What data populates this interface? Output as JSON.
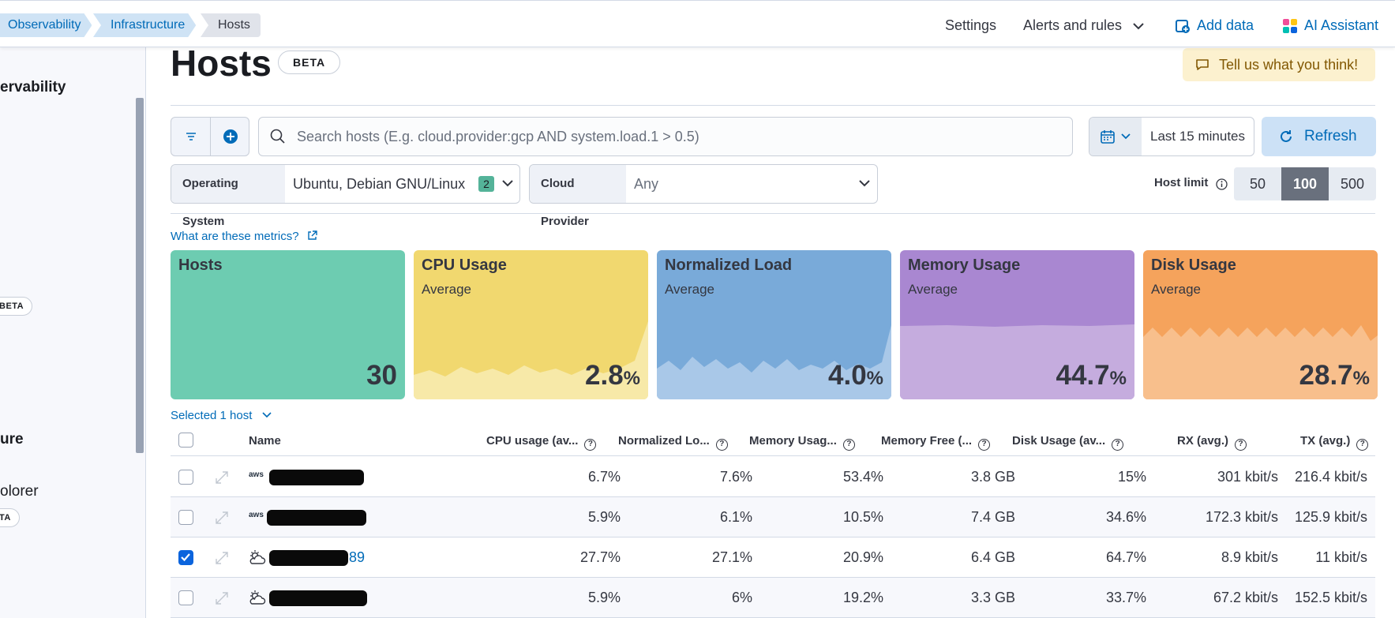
{
  "breadcrumbs": [
    "Observability",
    "Infrastructure",
    "Hosts"
  ],
  "header": {
    "settings": "Settings",
    "alerts": "Alerts and rules",
    "add_data": "Add data",
    "ai_assistant": "AI Assistant"
  },
  "sidebar": {
    "title_fragment": "ervability",
    "item2_fragment": "ure",
    "item3_fragment": "olorer",
    "beta1": "BETA",
    "beta2": "TA"
  },
  "page": {
    "title": "Hosts",
    "badge": "BETA",
    "feedback": "Tell us what you think!"
  },
  "search": {
    "placeholder": "Search hosts (E.g. cloud.provider:gcp AND system.load.1 > 0.5)"
  },
  "time": {
    "label": "Last 15 minutes",
    "refresh": "Refresh"
  },
  "filters": {
    "os_label": "Operating System",
    "os_value": "Ubuntu, Debian GNU/Linux",
    "os_count": "2",
    "cloud_label": "Cloud Provider",
    "cloud_value": "Any"
  },
  "host_limit": {
    "label": "Host limit",
    "options": [
      "50",
      "100",
      "500"
    ],
    "selected": "100"
  },
  "metrics_link": "What are these metrics?",
  "cards": [
    {
      "title": "Hosts",
      "subtitle": "",
      "value": "30",
      "unit": "",
      "color": "#6dccb1"
    },
    {
      "title": "CPU Usage",
      "subtitle": "Average",
      "value": "2.8",
      "unit": "%",
      "color": "#f1d86f"
    },
    {
      "title": "Normalized Load",
      "subtitle": "Average",
      "value": "4.0",
      "unit": "%",
      "color": "#79aad9"
    },
    {
      "title": "Memory Usage",
      "subtitle": "Average",
      "value": "44.7",
      "unit": "%",
      "color": "#a987d1"
    },
    {
      "title": "Disk Usage",
      "subtitle": "Average",
      "value": "28.7",
      "unit": "%",
      "color": "#f5a35c"
    }
  ],
  "selected": "Selected 1 host",
  "table": {
    "columns": [
      "Name",
      "CPU usage (av...",
      "Normalized Lo...",
      "Memory Usag...",
      "Memory Free (...",
      "Disk Usage (av...",
      "RX (avg.)",
      "TX (avg.)"
    ],
    "rows": [
      {
        "provider": "aws",
        "name_suffix": "",
        "checked": false,
        "cpu": "6.7%",
        "load": "7.6%",
        "mem": "53.4%",
        "free": "3.8 GB",
        "disk": "15%",
        "rx": "301 kbit/s",
        "tx": "216.4 kbit/s"
      },
      {
        "provider": "aws",
        "name_suffix": "",
        "checked": false,
        "cpu": "5.9%",
        "load": "6.1%",
        "mem": "10.5%",
        "free": "7.4 GB",
        "disk": "34.6%",
        "rx": "172.3 kbit/s",
        "tx": "125.9 kbit/s"
      },
      {
        "provider": "gcp",
        "name_suffix": "89",
        "checked": true,
        "cpu": "27.7%",
        "load": "27.1%",
        "mem": "20.9%",
        "free": "6.4 GB",
        "disk": "64.7%",
        "rx": "8.9 kbit/s",
        "tx": "11 kbit/s"
      },
      {
        "provider": "gcp",
        "name_suffix": "",
        "checked": false,
        "cpu": "5.9%",
        "load": "6%",
        "mem": "19.2%",
        "free": "3.3 GB",
        "disk": "33.7%",
        "rx": "67.2 kbit/s",
        "tx": "152.5 kbit/s"
      }
    ]
  }
}
